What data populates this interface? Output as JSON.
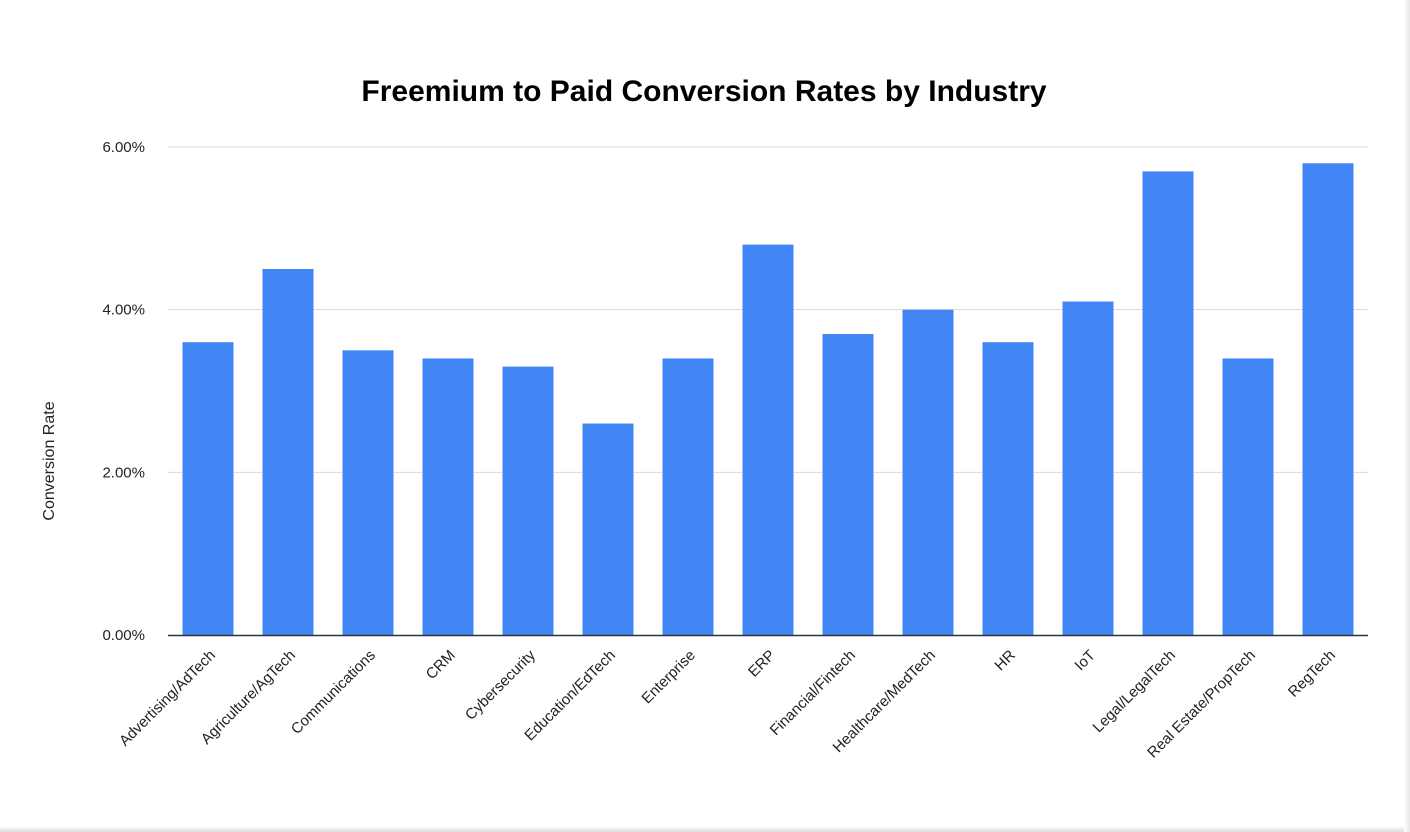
{
  "chart_data": {
    "type": "bar",
    "title": "Freemium to Paid Conversion Rates by Industry",
    "xlabel": "",
    "ylabel": "Conversion Rate",
    "categories": [
      "Advertising/AdTech",
      "Agriculture/AgTech",
      "Communications",
      "CRM",
      "Cybersecurity",
      "Education/EdTech",
      "Enterprise",
      "ERP",
      "Financial/Fintech",
      "Healthcare/MedTech",
      "HR",
      "IoT",
      "Legal/LegalTech",
      "Real Estate/PropTech",
      "RegTech"
    ],
    "values": [
      0.036,
      0.045,
      0.035,
      0.034,
      0.033,
      0.026,
      0.034,
      0.048,
      0.037,
      0.04,
      0.036,
      0.041,
      0.057,
      0.034,
      0.058
    ],
    "ylim": [
      0,
      0.06
    ],
    "yticks": [
      0,
      0.02,
      0.04,
      0.06
    ],
    "ytick_labels": [
      "0.00%",
      "2.00%",
      "4.00%",
      "6.00%"
    ],
    "grid": true,
    "legend": "none",
    "bar_color": "#4285f4",
    "gridline_color": "#d9d9d9",
    "axis_color": "#333333"
  }
}
